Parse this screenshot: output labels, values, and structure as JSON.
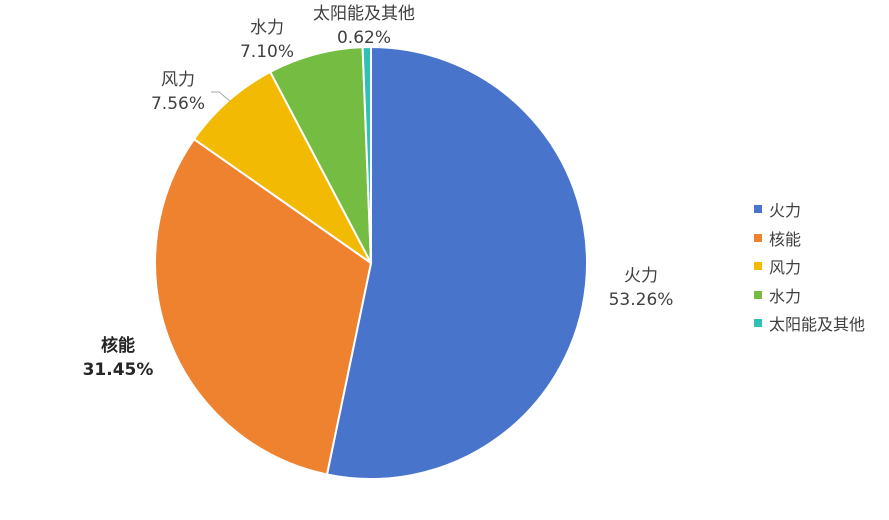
{
  "chart_data": {
    "type": "pie",
    "categories": [
      "火力",
      "核能",
      "风力",
      "水力",
      "太阳能及其他"
    ],
    "values": [
      53.26,
      31.45,
      7.56,
      7.1,
      0.62
    ],
    "value_labels": [
      "53.26%",
      "31.45%",
      "7.56%",
      "7.10%",
      "0.62%"
    ],
    "colors": [
      "#4874CB",
      "#EE822F",
      "#F2BA02",
      "#75BD42",
      "#30C0B4"
    ],
    "start_angle": "top, clockwise",
    "legend_position": "right"
  }
}
